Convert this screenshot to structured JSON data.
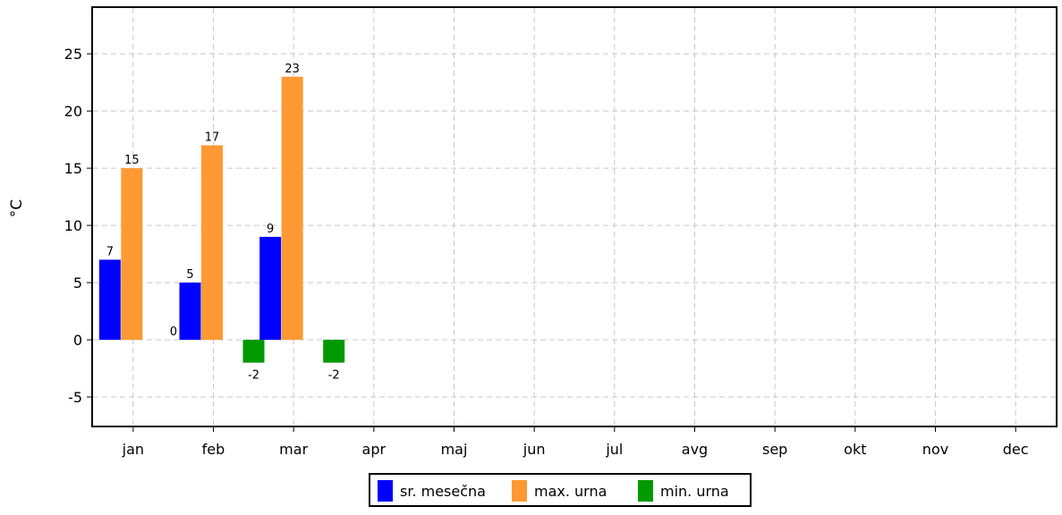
{
  "chart_data": {
    "type": "bar",
    "title": "",
    "xlabel": "",
    "ylabel": "°C",
    "categories": [
      "jan",
      "feb",
      "mar",
      "apr",
      "maj",
      "jun",
      "jul",
      "avg",
      "sep",
      "okt",
      "nov",
      "dec"
    ],
    "series": [
      {
        "name": "sr. mesečna",
        "color": "#0000ff",
        "values": [
          7,
          5,
          9,
          null,
          null,
          null,
          null,
          null,
          null,
          null,
          null,
          null
        ]
      },
      {
        "name": "max. urna",
        "color": "#ff9933",
        "values": [
          15,
          17,
          23,
          null,
          null,
          null,
          null,
          null,
          null,
          null,
          null,
          null
        ]
      },
      {
        "name": "min. urna",
        "color": "#009900",
        "values": [
          0,
          -2,
          -2,
          null,
          null,
          null,
          null,
          null,
          null,
          null,
          null,
          null
        ]
      }
    ],
    "ylim": [
      -7.5,
      29
    ],
    "yticks": [
      -5,
      0,
      5,
      10,
      15,
      20,
      25
    ],
    "grid": true,
    "legend_position": "bottom"
  }
}
